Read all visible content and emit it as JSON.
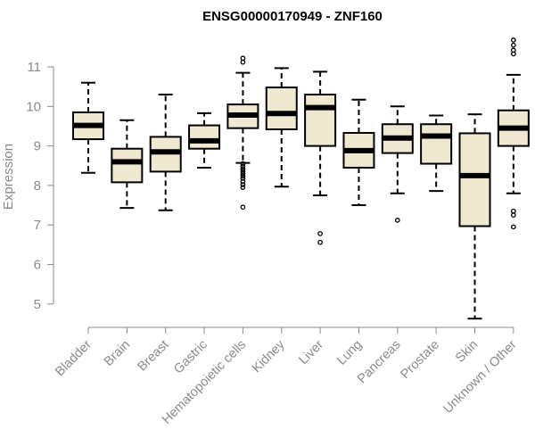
{
  "chart_data": {
    "type": "boxplot",
    "title": "ENSG00000170949 - ZNF160",
    "ylabel": "Expression",
    "xlabel": "",
    "ylim": [
      4.5,
      11.5
    ],
    "yticks": [
      5,
      6,
      7,
      8,
      9,
      10,
      11
    ],
    "box_fill": "#efe9d2",
    "categories": [
      "Bladder",
      "Brain",
      "Breast",
      "Gastric",
      "Hematopoietic cells",
      "Kidney",
      "Liver",
      "Lung",
      "Pancreas",
      "Prostate",
      "Skin",
      "Unknown / Other"
    ],
    "boxes": [
      {
        "whisker_low": 8.32,
        "q1": 9.17,
        "median": 9.52,
        "q3": 9.85,
        "whisker_high": 10.6,
        "outliers": []
      },
      {
        "whisker_low": 7.43,
        "q1": 8.08,
        "median": 8.6,
        "q3": 8.93,
        "whisker_high": 9.65,
        "outliers": []
      },
      {
        "whisker_low": 7.37,
        "q1": 8.35,
        "median": 8.85,
        "q3": 9.23,
        "whisker_high": 10.3,
        "outliers": []
      },
      {
        "whisker_low": 8.45,
        "q1": 8.93,
        "median": 9.13,
        "q3": 9.52,
        "whisker_high": 9.83,
        "outliers": []
      },
      {
        "whisker_low": 8.57,
        "q1": 9.45,
        "median": 9.78,
        "q3": 10.05,
        "whisker_high": 10.85,
        "outliers": [
          11.22,
          11.12,
          8.55,
          8.48,
          8.42,
          8.36,
          8.3,
          8.24,
          8.18,
          8.1,
          8.02,
          7.95,
          7.45
        ]
      },
      {
        "whisker_low": 7.97,
        "q1": 9.42,
        "median": 9.82,
        "q3": 10.48,
        "whisker_high": 10.97,
        "outliers": []
      },
      {
        "whisker_low": 7.75,
        "q1": 9.0,
        "median": 9.97,
        "q3": 10.3,
        "whisker_high": 10.88,
        "outliers": [
          6.78,
          6.56
        ]
      },
      {
        "whisker_low": 7.5,
        "q1": 8.45,
        "median": 8.88,
        "q3": 9.33,
        "whisker_high": 10.17,
        "outliers": []
      },
      {
        "whisker_low": 7.8,
        "q1": 8.82,
        "median": 9.2,
        "q3": 9.55,
        "whisker_high": 10.0,
        "outliers": [
          7.12
        ]
      },
      {
        "whisker_low": 7.86,
        "q1": 8.55,
        "median": 9.25,
        "q3": 9.55,
        "whisker_high": 9.77,
        "outliers": []
      },
      {
        "whisker_low": 4.63,
        "q1": 6.97,
        "median": 8.25,
        "q3": 9.32,
        "whisker_high": 9.8,
        "outliers": []
      },
      {
        "whisker_low": 7.8,
        "q1": 9.0,
        "median": 9.45,
        "q3": 9.9,
        "whisker_high": 10.8,
        "outliers": [
          11.68,
          11.55,
          11.42,
          11.33,
          7.35,
          7.25,
          6.95
        ]
      }
    ]
  }
}
